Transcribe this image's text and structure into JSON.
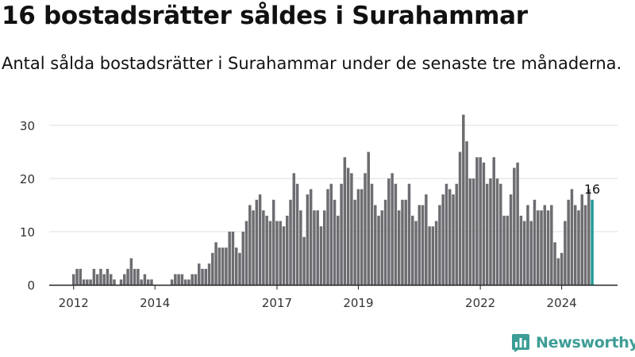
{
  "header": {
    "title": "16 bostadsrätter såldes i Surahammar",
    "subtitle": "Antal sålda bostadsrätter i Surahammar under de senaste tre månaderna."
  },
  "brand": {
    "name": "Newsworthy",
    "color": "#3d9e96"
  },
  "colors": {
    "bar": "#6d6c71",
    "highlight": "#1e9a96",
    "axis": "#222222",
    "grid": "#dddddd"
  },
  "chart_data": {
    "type": "bar",
    "title": "16 bostadsrätter såldes i Surahammar",
    "xlabel": "",
    "ylabel": "",
    "ylim": [
      0,
      33
    ],
    "yticks": [
      0,
      10,
      20,
      30
    ],
    "x_tick_labels": [
      {
        "label": "2012",
        "index": 0
      },
      {
        "label": "2014",
        "index": 24
      },
      {
        "label": "2017",
        "index": 60
      },
      {
        "label": "2019",
        "index": 84
      },
      {
        "label": "2022",
        "index": 120
      },
      {
        "label": "2024",
        "index": 144
      }
    ],
    "highlight_label": "16",
    "start": "2012-01",
    "values": [
      2,
      3,
      3,
      1,
      1,
      1,
      3,
      2,
      3,
      2,
      3,
      2,
      1,
      0,
      1,
      2,
      3,
      5,
      3,
      3,
      1,
      2,
      1,
      1,
      0,
      0,
      0,
      0,
      0,
      1,
      2,
      2,
      2,
      1,
      1,
      2,
      2,
      4,
      3,
      3,
      4,
      6,
      8,
      7,
      7,
      7,
      10,
      10,
      7,
      6,
      10,
      12,
      15,
      14,
      16,
      17,
      14,
      13,
      12,
      16,
      12,
      12,
      11,
      13,
      16,
      21,
      19,
      14,
      9,
      17,
      18,
      14,
      14,
      11,
      14,
      18,
      19,
      16,
      13,
      19,
      24,
      22,
      21,
      16,
      18,
      18,
      21,
      25,
      19,
      15,
      13,
      14,
      16,
      20,
      21,
      19,
      14,
      16,
      16,
      19,
      13,
      12,
      15,
      15,
      17,
      11,
      11,
      12,
      15,
      17,
      19,
      18,
      17,
      19,
      25,
      32,
      27,
      20,
      20,
      24,
      24,
      23,
      19,
      20,
      24,
      20,
      19,
      13,
      13,
      17,
      22,
      23,
      13,
      12,
      15,
      12,
      16,
      14,
      14,
      15,
      14,
      15,
      8,
      5,
      6,
      12,
      16,
      18,
      15,
      14,
      17,
      15,
      18,
      16
    ]
  }
}
